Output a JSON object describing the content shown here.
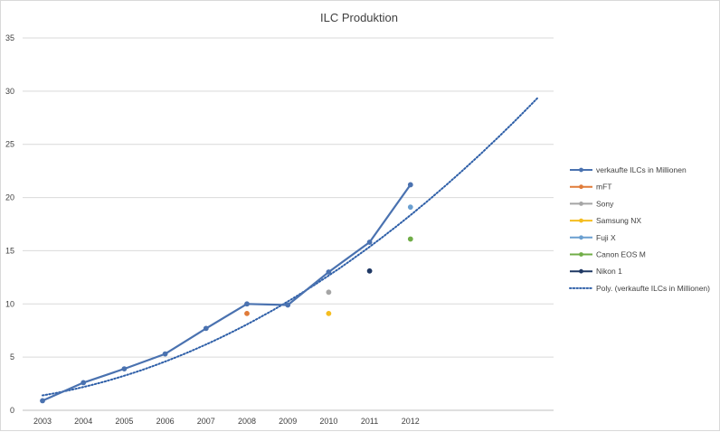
{
  "chart_data": {
    "type": "line",
    "title": "ILC Produktion",
    "xlabel": "",
    "ylabel": "",
    "categories": [
      "2003",
      "2004",
      "2005",
      "2006",
      "2007",
      "2008",
      "2009",
      "2010",
      "2011",
      "2012"
    ],
    "ylim": [
      0,
      35
    ],
    "yticks": [
      0,
      5,
      10,
      15,
      20,
      25,
      30,
      35
    ],
    "grid": true,
    "legend_position": "right",
    "series": [
      {
        "name": "verkaufte ILCs in Millionen",
        "kind": "line-markers",
        "color": "#4a72b0",
        "points": [
          {
            "x": "2003",
            "y": 0.9
          },
          {
            "x": "2004",
            "y": 2.6
          },
          {
            "x": "2005",
            "y": 3.9
          },
          {
            "x": "2006",
            "y": 5.3
          },
          {
            "x": "2007",
            "y": 7.7
          },
          {
            "x": "2008",
            "y": 10.0
          },
          {
            "x": "2009",
            "y": 9.9
          },
          {
            "x": "2010",
            "y": 13.0
          },
          {
            "x": "2011",
            "y": 15.8
          },
          {
            "x": "2012",
            "y": 21.2
          }
        ]
      },
      {
        "name": "mFT",
        "kind": "markers",
        "color": "#e07b39",
        "points": [
          {
            "x": "2008",
            "y": 9.1
          }
        ]
      },
      {
        "name": "Sony",
        "kind": "markers",
        "color": "#a5a5a5",
        "points": [
          {
            "x": "2010",
            "y": 11.1
          }
        ]
      },
      {
        "name": "Samsung NX",
        "kind": "markers",
        "color": "#f5bd1f",
        "points": [
          {
            "x": "2010",
            "y": 9.1
          }
        ]
      },
      {
        "name": "Fuji X",
        "kind": "markers",
        "color": "#6a9fd0",
        "points": [
          {
            "x": "2012",
            "y": 19.1
          }
        ]
      },
      {
        "name": "Canon EOS M",
        "kind": "markers",
        "color": "#70ad47",
        "points": [
          {
            "x": "2012",
            "y": 16.1
          }
        ]
      },
      {
        "name": "Nikon 1",
        "kind": "markers",
        "color": "#1f3864",
        "points": [
          {
            "x": "2011",
            "y": 13.1
          }
        ]
      }
    ],
    "trendline": {
      "name": "Poly.  (verkaufte ILCs in Millionen)",
      "type": "polynomial",
      "color": "#2e5fa8",
      "x_start_index": 0,
      "x_end_index": 12.1,
      "coefficients": [
        1.4,
        0.65,
        0.137
      ]
    }
  }
}
